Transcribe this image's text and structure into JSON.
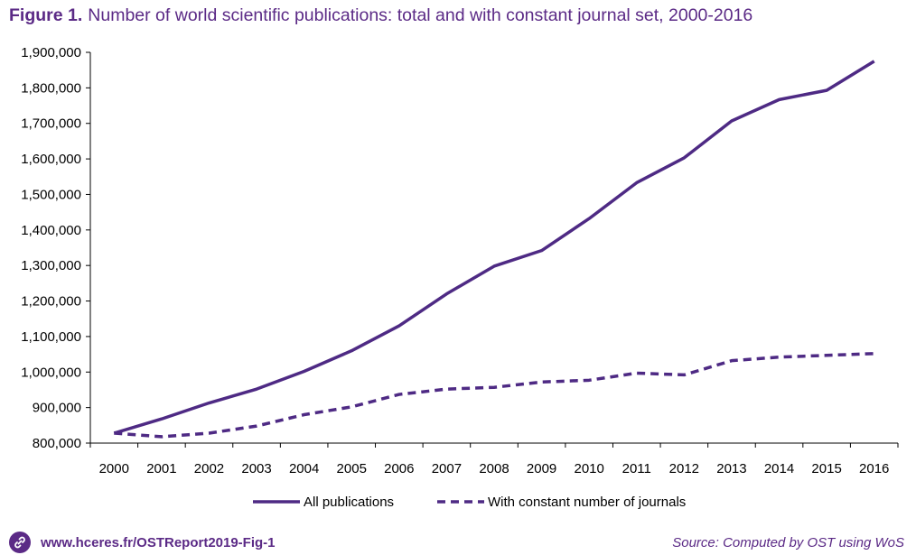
{
  "figure": {
    "label": "Figure 1.",
    "title": "Number of world scientific publications: total and with constant journal set, 2000-2016"
  },
  "footer": {
    "link_icon": "link-icon",
    "link_text": "www.hceres.fr/OSTReport2019-Fig-1",
    "source": "Source: Computed by OST using WoS"
  },
  "colors": {
    "accent": "#5b2a86",
    "series": "#4e2a84",
    "axis": "#000000"
  },
  "chart_data": {
    "type": "line",
    "x": [
      "2000",
      "2001",
      "2002",
      "2003",
      "2004",
      "2005",
      "2006",
      "2007",
      "2008",
      "2009",
      "2010",
      "2011",
      "2012",
      "2013",
      "2014",
      "2015",
      "2016"
    ],
    "ylim": [
      800000,
      1900000
    ],
    "yticks": [
      800000,
      900000,
      1000000,
      1100000,
      1200000,
      1300000,
      1400000,
      1500000,
      1600000,
      1700000,
      1800000,
      1900000
    ],
    "ytick_labels": [
      "800,000",
      "900,000",
      "1,000,000",
      "1,100,000",
      "1,200,000",
      "1,300,000",
      "1,400,000",
      "1,500,000",
      "1,600,000",
      "1,700,000",
      "1,800,000",
      "1,900,000"
    ],
    "grid": false,
    "legend_position": "bottom",
    "series": [
      {
        "name": "All publications",
        "style": "solid",
        "values": [
          828000,
          868000,
          913000,
          952000,
          1002000,
          1060000,
          1130000,
          1220000,
          1298000,
          1342000,
          1432000,
          1533000,
          1603000,
          1707000,
          1767000,
          1793000,
          1875000
        ]
      },
      {
        "name": "With constant number of journals",
        "style": "dashed",
        "values": [
          828000,
          818000,
          828000,
          848000,
          880000,
          902000,
          937000,
          952000,
          957000,
          972000,
          977000,
          997000,
          992000,
          1032000,
          1042000,
          1047000,
          1052000
        ]
      }
    ]
  }
}
